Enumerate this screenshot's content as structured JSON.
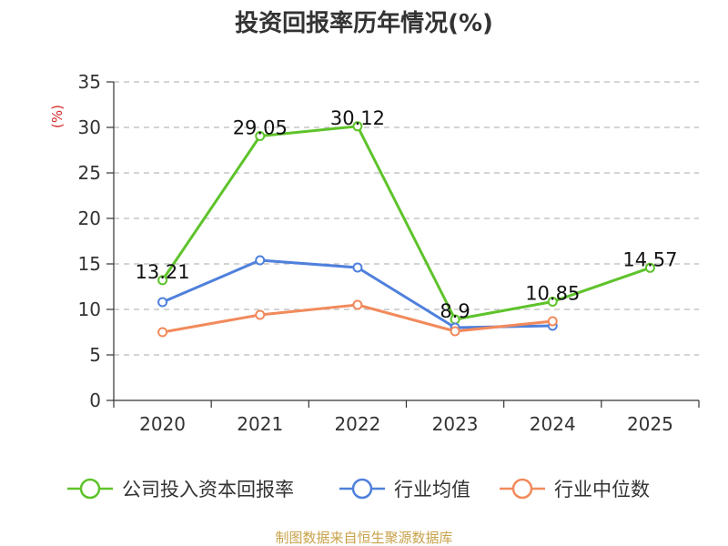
{
  "chart_data": {
    "type": "line",
    "title": "投资回报率历年情况(%)",
    "ylabel": "(%)",
    "xlabel": "",
    "categories": [
      "2020",
      "2021",
      "2022",
      "2023",
      "2024",
      "2025"
    ],
    "ylim": [
      0,
      35
    ],
    "yticks": [
      0,
      5,
      10,
      15,
      20,
      25,
      30,
      35
    ],
    "grid": true,
    "legend_position": "bottom",
    "series": [
      {
        "name": "公司投入资本回报率",
        "color": "#5ec32b",
        "values": [
          13.21,
          29.05,
          30.12,
          8.9,
          10.85,
          14.57
        ],
        "labels": [
          "13.21",
          "29.05",
          "30.12",
          "8.9",
          "10.85",
          "14.57"
        ],
        "show_labels": true
      },
      {
        "name": "行业均值",
        "color": "#4f80dc",
        "values": [
          10.8,
          15.4,
          14.6,
          8.0,
          8.2,
          null
        ],
        "show_labels": false
      },
      {
        "name": "行业中位数",
        "color": "#f28a5c",
        "values": [
          7.5,
          9.4,
          10.5,
          7.6,
          8.7,
          null
        ],
        "show_labels": false
      }
    ]
  },
  "source": {
    "text": "制图数据来自恒生聚源数据库",
    "color": "#c8a24a"
  },
  "ylabel_color": "#d62728"
}
